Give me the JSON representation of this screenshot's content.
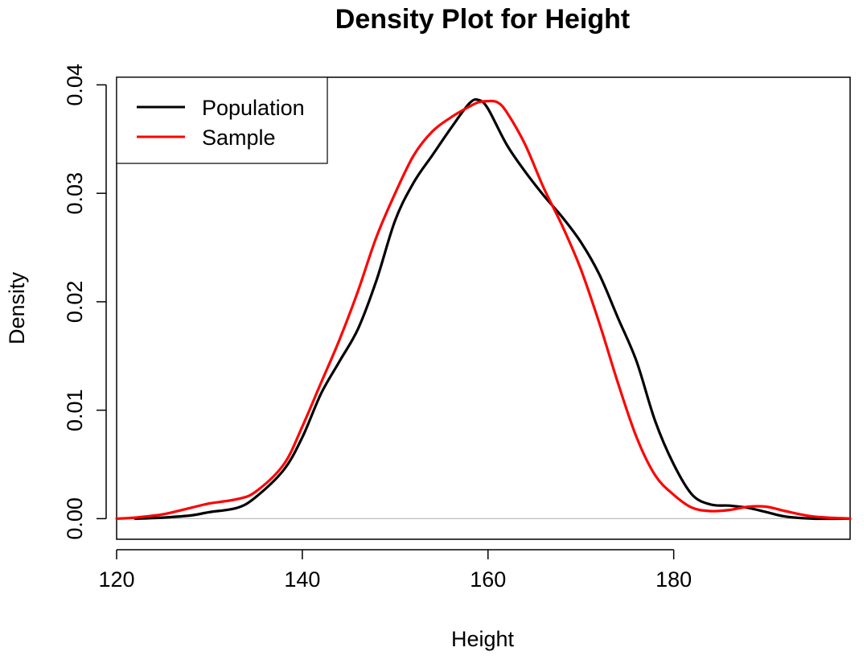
{
  "chart_data": {
    "type": "line",
    "title": "Density Plot for Height",
    "xlabel": "Height",
    "ylabel": "Density",
    "xlim": [
      120,
      199
    ],
    "ylim": [
      0,
      0.04
    ],
    "x_ticks": [
      "120",
      "140",
      "160",
      "180"
    ],
    "y_ticks": [
      "0.00",
      "0.01",
      "0.02",
      "0.03",
      "0.04"
    ],
    "grid": false,
    "legend_position": "top-left",
    "baseline": 0,
    "colors": {
      "baseline": "#bebebe",
      "axis": "#000000"
    },
    "series": [
      {
        "name": "Population",
        "color": "#000000",
        "x": [
          122,
          125,
          128,
          130,
          133,
          135,
          138,
          140,
          142,
          144,
          146,
          148,
          150,
          152,
          154,
          156,
          158,
          159,
          160,
          162,
          164,
          166,
          168,
          170,
          172,
          174,
          176,
          178,
          180,
          182,
          184,
          186,
          188,
          190,
          192,
          195,
          199
        ],
        "y": [
          0.0,
          0.0001,
          0.0003,
          0.0006,
          0.001,
          0.002,
          0.0045,
          0.0075,
          0.0115,
          0.0145,
          0.0175,
          0.022,
          0.0275,
          0.031,
          0.0335,
          0.036,
          0.0383,
          0.0386,
          0.0378,
          0.0345,
          0.032,
          0.0298,
          0.0278,
          0.0255,
          0.0225,
          0.0185,
          0.0145,
          0.009,
          0.005,
          0.0022,
          0.0013,
          0.0012,
          0.001,
          0.0006,
          0.0002,
          0.0,
          0.0
        ]
      },
      {
        "name": "Sample",
        "color": "#ff0000",
        "x": [
          120,
          122,
          125,
          128,
          130,
          133,
          135,
          138,
          140,
          142,
          144,
          146,
          148,
          150,
          152,
          154,
          156,
          158,
          159,
          160,
          161,
          162,
          164,
          166,
          168,
          170,
          172,
          174,
          176,
          178,
          180,
          182,
          184,
          186,
          188,
          190,
          192,
          195,
          199
        ],
        "y": [
          0.0,
          0.0001,
          0.0004,
          0.001,
          0.0014,
          0.0018,
          0.0025,
          0.005,
          0.0085,
          0.0125,
          0.0165,
          0.021,
          0.026,
          0.03,
          0.0335,
          0.0357,
          0.037,
          0.038,
          0.0384,
          0.0385,
          0.0384,
          0.0375,
          0.0345,
          0.0305,
          0.027,
          0.023,
          0.018,
          0.0125,
          0.0075,
          0.004,
          0.0022,
          0.001,
          0.0007,
          0.0008,
          0.0011,
          0.0011,
          0.0007,
          0.0002,
          0.0
        ]
      }
    ]
  }
}
